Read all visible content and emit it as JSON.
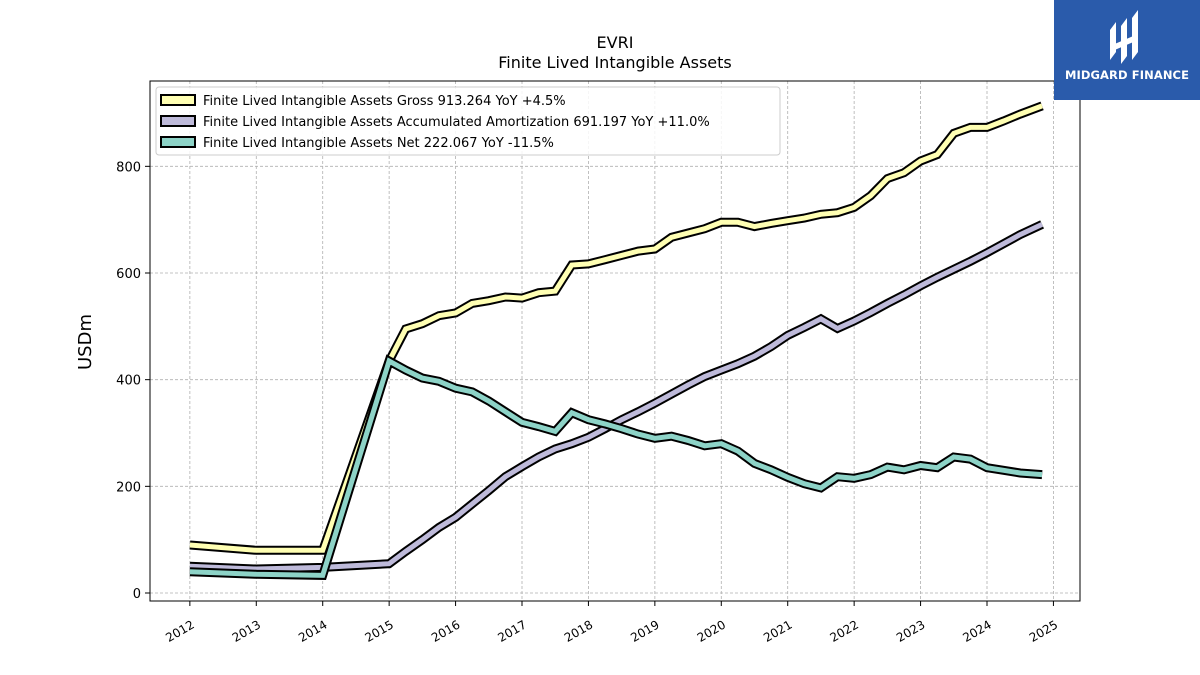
{
  "brand": {
    "logo_text": "MIDGARD FINANCE",
    "color": "#2a5bab"
  },
  "chart_data": {
    "type": "line",
    "title": "EVRI",
    "subtitle": "Finite Lived Intangible Assets",
    "ylabel": "USDm",
    "xlabel": "",
    "xlim": [
      2011.4,
      2025.4
    ],
    "ylim": [
      -15,
      960
    ],
    "x_ticks": [
      "2012",
      "2013",
      "2014",
      "2015",
      "2016",
      "2017",
      "2018",
      "2019",
      "2020",
      "2021",
      "2022",
      "2023",
      "2024",
      "2025"
    ],
    "y_ticks": [
      0,
      200,
      400,
      600,
      800
    ],
    "grid": true,
    "legend_position": "top-left",
    "series": [
      {
        "name": "Finite Lived Intangible Assets Gross  913.264 YoY +4.5%",
        "color": "#ffffb3",
        "x": [
          2012.0,
          2013.0,
          2014.0,
          2015.0,
          2015.25,
          2015.5,
          2015.75,
          2016.0,
          2016.25,
          2016.5,
          2016.75,
          2017.0,
          2017.25,
          2017.5,
          2017.75,
          2018.0,
          2018.25,
          2018.5,
          2018.75,
          2019.0,
          2019.25,
          2019.5,
          2019.75,
          2020.0,
          2020.25,
          2020.5,
          2020.75,
          2021.0,
          2021.25,
          2021.5,
          2021.75,
          2022.0,
          2022.25,
          2022.5,
          2022.75,
          2023.0,
          2023.25,
          2023.5,
          2023.75,
          2024.0,
          2024.25,
          2024.5,
          2024.83
        ],
        "y": [
          90,
          80,
          80,
          435,
          495,
          505,
          520,
          525,
          543,
          548,
          555,
          553,
          563,
          566,
          615,
          617,
          625,
          633,
          641,
          645,
          667,
          675,
          683,
          695,
          695,
          687,
          693,
          698,
          703,
          710,
          713,
          723,
          745,
          777,
          788,
          810,
          822,
          862,
          873,
          873,
          885,
          898,
          913.264
        ]
      },
      {
        "name": "Finite Lived Intangible Assets Accumulated Amortization  691.197 YoY +11.0%",
        "color": "#bebada",
        "x": [
          2012.0,
          2013.0,
          2014.0,
          2015.0,
          2015.25,
          2015.5,
          2015.75,
          2016.0,
          2016.25,
          2016.5,
          2016.75,
          2017.0,
          2017.25,
          2017.5,
          2017.75,
          2018.0,
          2018.25,
          2018.5,
          2018.75,
          2019.0,
          2019.25,
          2019.5,
          2019.75,
          2020.0,
          2020.25,
          2020.5,
          2020.75,
          2021.0,
          2021.25,
          2021.5,
          2021.75,
          2022.0,
          2022.25,
          2022.5,
          2022.75,
          2023.0,
          2023.25,
          2023.5,
          2023.75,
          2024.0,
          2024.25,
          2024.5,
          2024.83
        ],
        "y": [
          50,
          45,
          48,
          55,
          78,
          100,
          123,
          142,
          167,
          192,
          218,
          237,
          255,
          270,
          280,
          292,
          308,
          325,
          340,
          356,
          373,
          390,
          406,
          418,
          430,
          444,
          462,
          483,
          498,
          514,
          496,
          510,
          526,
          543,
          559,
          576,
          592,
          607,
          622,
          638,
          655,
          672,
          691.197
        ]
      },
      {
        "name": "Finite Lived Intangible Assets Net  222.067 YoY -11.5%",
        "color": "#8dd3c7",
        "x": [
          2012.0,
          2013.0,
          2014.0,
          2015.0,
          2015.25,
          2015.5,
          2015.75,
          2016.0,
          2016.25,
          2016.5,
          2016.75,
          2017.0,
          2017.25,
          2017.5,
          2017.75,
          2018.0,
          2018.25,
          2018.5,
          2018.75,
          2019.0,
          2019.25,
          2019.5,
          2019.75,
          2020.0,
          2020.25,
          2020.5,
          2020.75,
          2021.0,
          2021.25,
          2021.5,
          2021.75,
          2022.0,
          2022.25,
          2022.5,
          2022.75,
          2023.0,
          2023.25,
          2023.5,
          2023.75,
          2024.0,
          2024.25,
          2024.5,
          2024.83
        ],
        "y": [
          40,
          35,
          33,
          435,
          418,
          403,
          397,
          384,
          377,
          360,
          340,
          320,
          312,
          303,
          338,
          325,
          317,
          308,
          298,
          290,
          294,
          286,
          276,
          280,
          266,
          243,
          231,
          217,
          205,
          197,
          218,
          215,
          222,
          236,
          231,
          239,
          235,
          255,
          251,
          235,
          230,
          225,
          222.067
        ]
      }
    ]
  }
}
